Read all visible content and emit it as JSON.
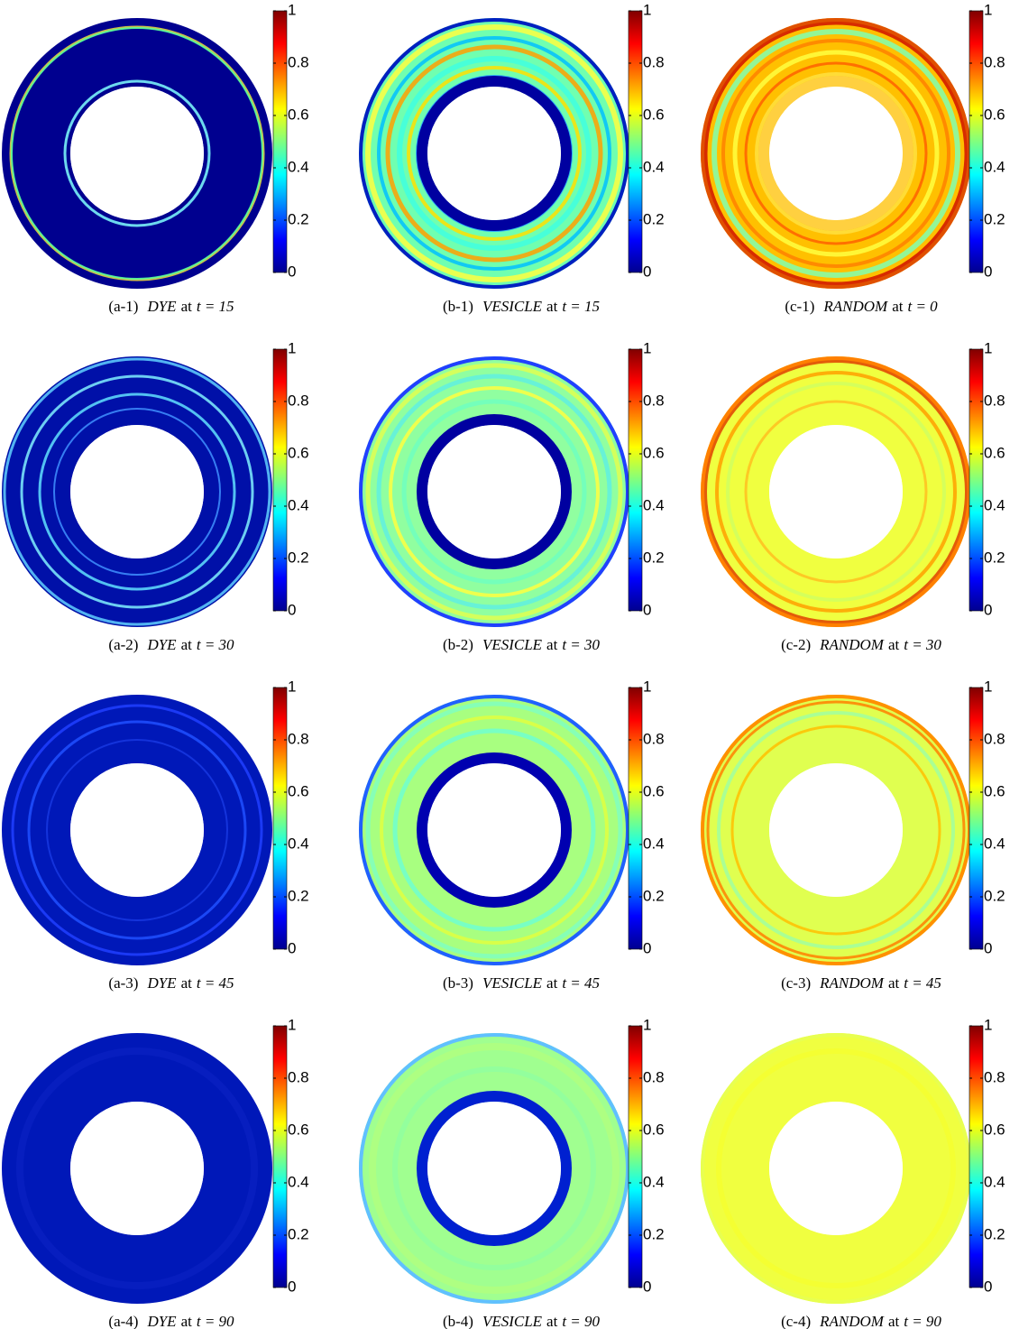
{
  "colorbar": {
    "ticks": [
      0,
      0.2,
      0.4,
      0.6,
      0.8,
      1
    ]
  },
  "panels": [
    {
      "label": "(a-1)",
      "method": "DYE",
      "connector": "at",
      "time": "t = 15"
    },
    {
      "label": "(b-1)",
      "method": "VESICLE",
      "connector": "at",
      "time": "t = 15"
    },
    {
      "label": "(c-1)",
      "method": "RANDOM",
      "connector": "at",
      "time": "t = 0"
    },
    {
      "label": "(a-2)",
      "method": "DYE",
      "connector": "at",
      "time": "t = 30"
    },
    {
      "label": "(b-2)",
      "method": "VESICLE",
      "connector": "at",
      "time": "t = 30"
    },
    {
      "label": "(c-2)",
      "method": "RANDOM",
      "connector": "at",
      "time": "t = 30"
    },
    {
      "label": "(a-3)",
      "method": "DYE",
      "connector": "at",
      "time": "t = 45"
    },
    {
      "label": "(b-3)",
      "method": "VESICLE",
      "connector": "at",
      "time": "t = 45"
    },
    {
      "label": "(c-3)",
      "method": "RANDOM",
      "connector": "at",
      "time": "t = 45"
    },
    {
      "label": "(a-4)",
      "method": "DYE",
      "connector": "at",
      "time": "t = 90"
    },
    {
      "label": "(b-4)",
      "method": "VESICLE",
      "connector": "at",
      "time": "t = 90"
    },
    {
      "label": "(c-4)",
      "method": "RANDOM",
      "connector": "at",
      "time": "t = 90"
    }
  ]
}
